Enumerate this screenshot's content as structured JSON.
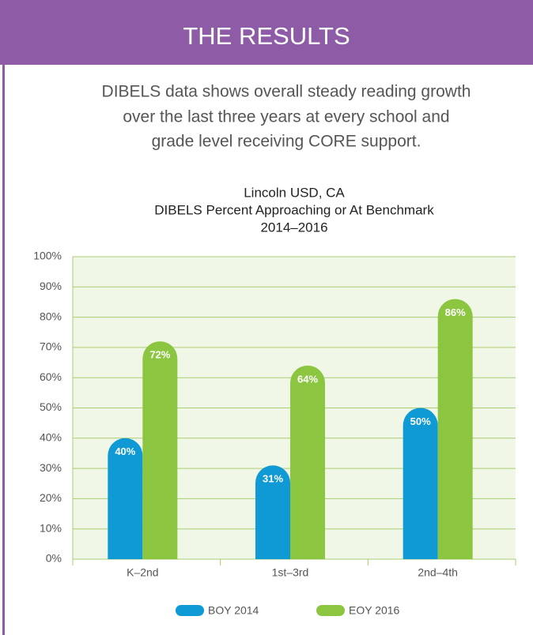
{
  "header": {
    "title": "THE RESULTS"
  },
  "intro": [
    "DIBELS data shows overall steady reading growth",
    "over the last three years at every school and",
    "grade level receiving CORE support."
  ],
  "chart_data": {
    "type": "bar",
    "title": [
      "Lincoln USD, CA",
      "DIBELS Percent Approaching or At Benchmark",
      "2014–2016"
    ],
    "categories": [
      "K–2nd",
      "1st–3rd",
      "2nd–4th"
    ],
    "series": [
      {
        "name": "BOY 2014",
        "color": "#0f9ad6",
        "values": [
          40,
          31,
          50
        ],
        "value_labels": [
          "40%",
          "31%",
          "50%"
        ]
      },
      {
        "name": "EOY 2016",
        "color": "#8cc540",
        "values": [
          72,
          64,
          86
        ],
        "value_labels": [
          "72%",
          "64%",
          "86%"
        ]
      }
    ],
    "ylim": [
      0,
      100
    ],
    "yticks": [
      {
        "value": 0,
        "label": "0%"
      },
      {
        "value": 10,
        "label": "10%"
      },
      {
        "value": 20,
        "label": "20%"
      },
      {
        "value": 30,
        "label": "30%"
      },
      {
        "value": 40,
        "label": "40%"
      },
      {
        "value": 50,
        "label": "50%"
      },
      {
        "value": 60,
        "label": "60%"
      },
      {
        "value": 70,
        "label": "70%"
      },
      {
        "value": 80,
        "label": "80%"
      },
      {
        "value": 90,
        "label": "90%"
      },
      {
        "value": 100,
        "label": "100%"
      }
    ],
    "grid": true,
    "legend": "bottom"
  }
}
